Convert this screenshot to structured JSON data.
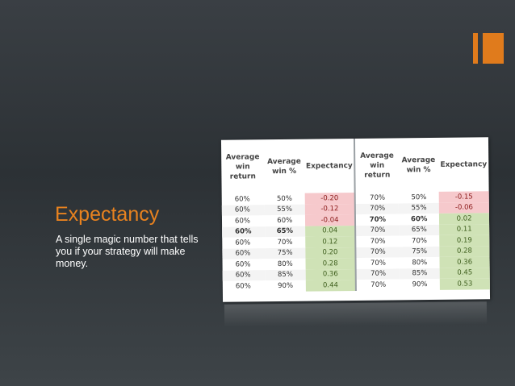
{
  "slide": {
    "title": "Expectancy",
    "body": "A single magic number that tells you if your strategy will make money."
  },
  "accent_color": "#e07b1c",
  "table": {
    "headers": [
      "Average win return",
      "Average win %",
      "Expectancy",
      "Average win return",
      "Average win %",
      "Expectancy"
    ],
    "rows": [
      [
        "60%",
        "50%",
        "-0.20",
        "70%",
        "50%",
        "-0.15"
      ],
      [
        "60%",
        "55%",
        "-0.12",
        "70%",
        "55%",
        "-0.06"
      ],
      [
        "60%",
        "60%",
        "-0.04",
        "70%",
        "60%",
        "0.02"
      ],
      [
        "60%",
        "65%",
        "0.04",
        "70%",
        "65%",
        "0.11"
      ],
      [
        "60%",
        "70%",
        "0.12",
        "70%",
        "70%",
        "0.19"
      ],
      [
        "60%",
        "75%",
        "0.20",
        "70%",
        "75%",
        "0.28"
      ],
      [
        "60%",
        "80%",
        "0.28",
        "70%",
        "80%",
        "0.36"
      ],
      [
        "60%",
        "85%",
        "0.36",
        "70%",
        "85%",
        "0.45"
      ],
      [
        "60%",
        "90%",
        "0.44",
        "70%",
        "90%",
        "0.53"
      ]
    ],
    "negative_color": "#f6c9cc",
    "positive_color": "#cfe2b6"
  }
}
